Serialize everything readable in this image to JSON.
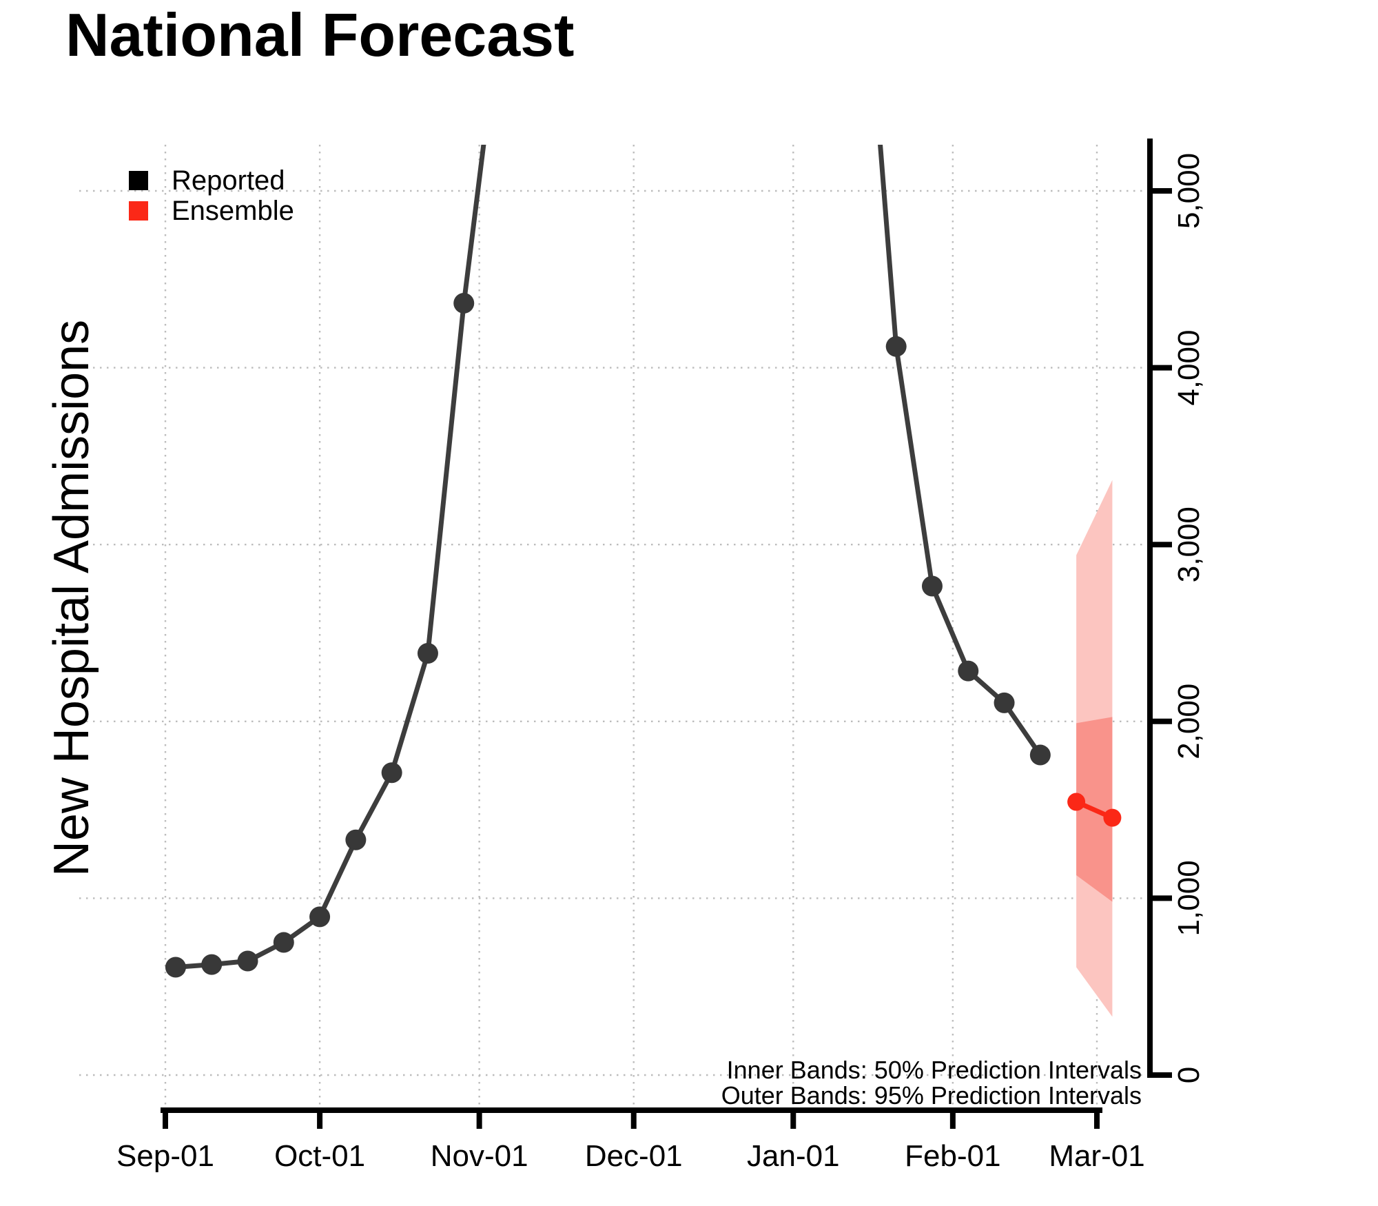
{
  "title": "National Forecast",
  "y_axis_label": "New Hospital Admissions",
  "legend": {
    "items": [
      {
        "label": "Reported",
        "color": "#000000"
      },
      {
        "label": "Ensemble",
        "color": "#fb2817"
      }
    ]
  },
  "annotations": {
    "line1": "Inner Bands: 50% Prediction Intervals",
    "line2": "Outer Bands: 95% Prediction Intervals"
  },
  "colors": {
    "reported_line": "#3d3d3d",
    "reported_point": "#383838",
    "ensemble": "#fb2817",
    "band_50": "#f9938b",
    "band_95": "#fcc5c0",
    "gridline": "#bcbcbc",
    "axis": "#000000"
  },
  "chart_data": {
    "type": "line",
    "title": "National Forecast",
    "ylabel": "New Hospital Admissions",
    "xlabel": "",
    "ylim": [
      0,
      5260
    ],
    "grid": "dotted, both axes, at month and 1000-unit intervals",
    "legend_position": "top-left inside plot",
    "y_ticks": [
      {
        "label": "0",
        "value": 0
      },
      {
        "label": "1,000",
        "value": 1000
      },
      {
        "label": "2,000",
        "value": 2000
      },
      {
        "label": "3,000",
        "value": 3000
      },
      {
        "label": "4,000",
        "value": 4000
      },
      {
        "label": "5,000",
        "value": 5000
      }
    ],
    "x_ticks": [
      {
        "label": "Sep-01",
        "date": "2022-09-01"
      },
      {
        "label": "Oct-01",
        "date": "2022-10-01"
      },
      {
        "label": "Nov-01",
        "date": "2022-11-01"
      },
      {
        "label": "Dec-01",
        "date": "2022-12-01"
      },
      {
        "label": "Jan-01",
        "date": "2023-01-01"
      },
      {
        "label": "Feb-01",
        "date": "2023-02-01"
      },
      {
        "label": "Mar-01",
        "date": "2023-03-01"
      }
    ],
    "series": [
      {
        "name": "Reported",
        "style": "line+points",
        "points": [
          {
            "date": "2022-09-03",
            "value": 610
          },
          {
            "date": "2022-09-10",
            "value": 625
          },
          {
            "date": "2022-09-17",
            "value": 645
          },
          {
            "date": "2022-09-24",
            "value": 750
          },
          {
            "date": "2022-10-01",
            "value": 895
          },
          {
            "date": "2022-10-08",
            "value": 1330
          },
          {
            "date": "2022-10-15",
            "value": 1710
          },
          {
            "date": "2022-10-22",
            "value": 2385
          },
          {
            "date": "2022-10-29",
            "value": 4365
          },
          {
            "date": "2022-11-05",
            "value": 6000,
            "clipped_above_axis": true
          },
          {
            "date": "2023-01-14",
            "value": 6700,
            "clipped_above_axis": true
          },
          {
            "date": "2023-01-21",
            "value": 4120
          },
          {
            "date": "2023-01-28",
            "value": 2765
          },
          {
            "date": "2023-02-04",
            "value": 2285
          },
          {
            "date": "2023-02-11",
            "value": 2105
          },
          {
            "date": "2023-02-18",
            "value": 1810
          }
        ]
      },
      {
        "name": "Ensemble",
        "style": "line+points",
        "points": [
          {
            "date": "2023-02-25",
            "value": 1545
          },
          {
            "date": "2023-03-04",
            "value": 1455
          }
        ]
      }
    ],
    "prediction_intervals": {
      "pi50": [
        {
          "date": "2023-02-25",
          "lower": 1130,
          "upper": 1990
        },
        {
          "date": "2023-03-04",
          "lower": 980,
          "upper": 2025
        }
      ],
      "pi95": [
        {
          "date": "2023-02-25",
          "lower": 610,
          "upper": 2940
        },
        {
          "date": "2023-03-04",
          "lower": 330,
          "upper": 3365
        }
      ]
    }
  }
}
